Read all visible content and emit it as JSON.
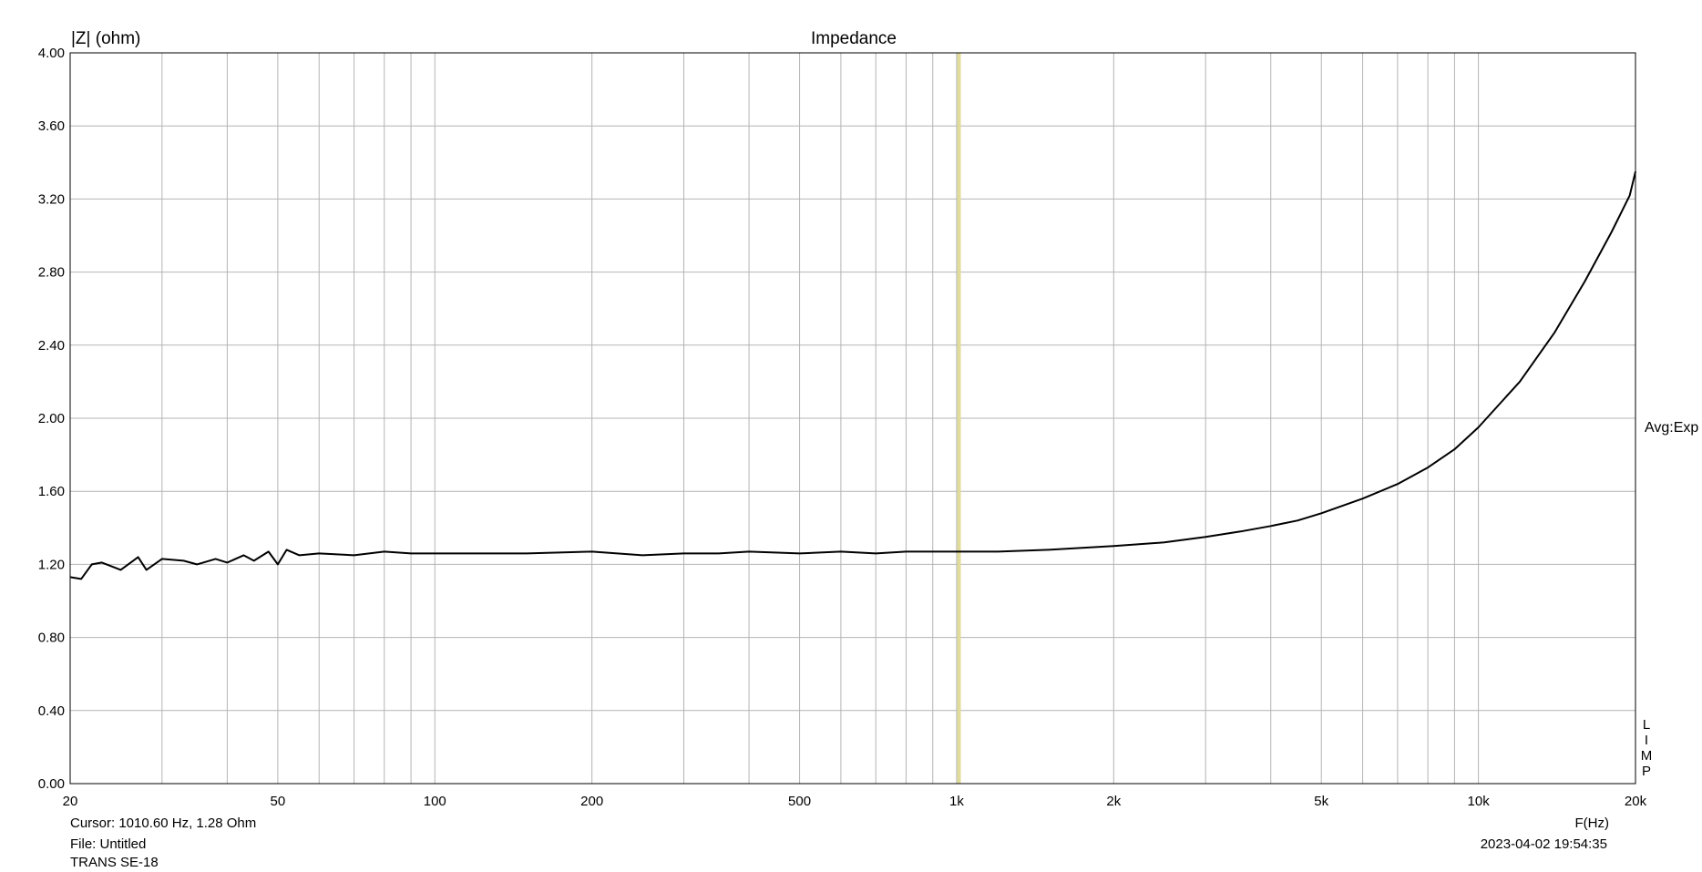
{
  "chart_data": {
    "type": "line",
    "title": "Impedance",
    "ylabel": "|Z| (ohm)",
    "xlabel": "F(Hz)",
    "xscale": "log",
    "xlim": [
      20,
      20000
    ],
    "ylim": [
      0,
      4
    ],
    "grid": true,
    "x_ticks": [
      {
        "value": 20,
        "label": "20"
      },
      {
        "value": 50,
        "label": "50"
      },
      {
        "value": 100,
        "label": "100"
      },
      {
        "value": 200,
        "label": "200"
      },
      {
        "value": 500,
        "label": "500"
      },
      {
        "value": 1000,
        "label": "1k"
      },
      {
        "value": 2000,
        "label": "2k"
      },
      {
        "value": 5000,
        "label": "5k"
      },
      {
        "value": 10000,
        "label": "10k"
      },
      {
        "value": 20000,
        "label": "20k"
      }
    ],
    "x_minor_gridlines": [
      30,
      40,
      60,
      70,
      80,
      90,
      300,
      400,
      600,
      700,
      800,
      900,
      3000,
      4000,
      6000,
      7000,
      8000,
      9000
    ],
    "y_ticks": [
      "0.00",
      "0.40",
      "0.80",
      "1.20",
      "1.60",
      "2.00",
      "2.40",
      "2.80",
      "3.20",
      "3.60",
      "4.00"
    ],
    "cursor_x": 1010.6,
    "series": [
      {
        "color": "#000000",
        "x": [
          20,
          21,
          22,
          23,
          25,
          27,
          28,
          30,
          33,
          35,
          38,
          40,
          43,
          45,
          48,
          50,
          52,
          55,
          60,
          70,
          80,
          90,
          100,
          150,
          200,
          250,
          300,
          350,
          400,
          500,
          600,
          700,
          800,
          1000,
          1200,
          1500,
          2000,
          2500,
          3000,
          3500,
          4000,
          4500,
          5000,
          6000,
          7000,
          8000,
          9000,
          10000,
          12000,
          14000,
          16000,
          18000,
          19500,
          20000
        ],
        "y": [
          1.13,
          1.12,
          1.2,
          1.21,
          1.17,
          1.24,
          1.17,
          1.23,
          1.22,
          1.2,
          1.23,
          1.21,
          1.25,
          1.22,
          1.27,
          1.2,
          1.28,
          1.25,
          1.26,
          1.25,
          1.27,
          1.26,
          1.26,
          1.26,
          1.27,
          1.25,
          1.26,
          1.26,
          1.27,
          1.26,
          1.27,
          1.26,
          1.27,
          1.27,
          1.27,
          1.28,
          1.3,
          1.32,
          1.35,
          1.38,
          1.41,
          1.44,
          1.48,
          1.56,
          1.64,
          1.73,
          1.83,
          1.95,
          2.2,
          2.47,
          2.75,
          3.02,
          3.22,
          3.35
        ]
      }
    ]
  },
  "cursor_text": "Cursor: 1010.60 Hz, 1.28 Ohm",
  "file_text": "File: Untitled",
  "device_text": "TRANS SE-18",
  "date_text": "2023-04-02 19:54:35",
  "avg_text": "Avg:Exp",
  "side_letters": [
    "L",
    "I",
    "M",
    "P"
  ]
}
